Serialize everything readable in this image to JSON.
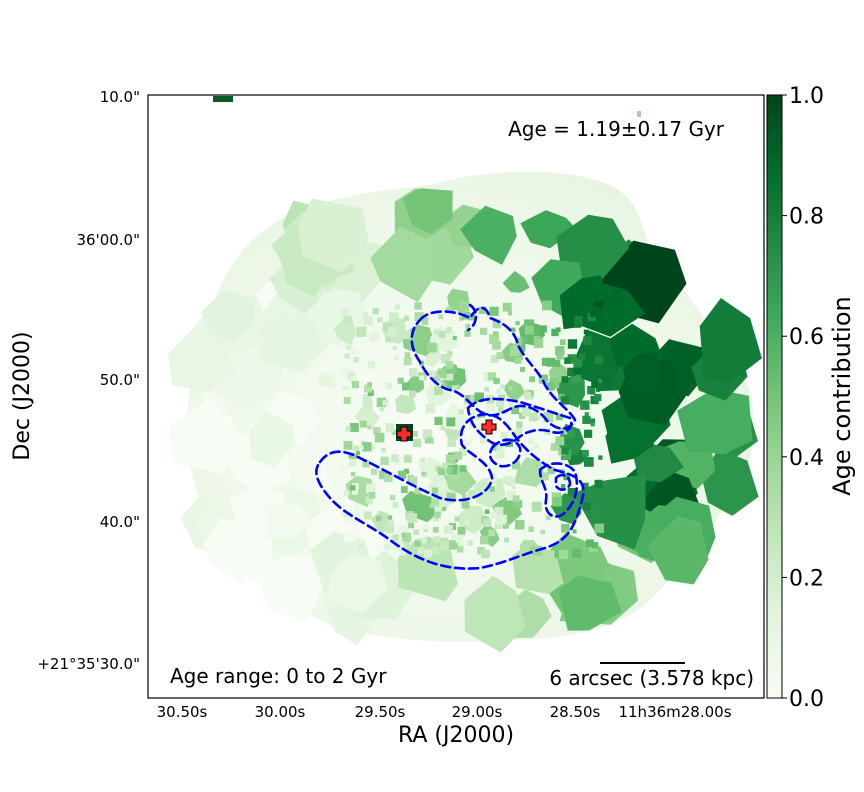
{
  "chart_data": {
    "type": "heatmap",
    "title": "",
    "xlabel": "RA (J2000)",
    "ylabel": "Dec (J2000)",
    "x_ticks": [
      "30.50s",
      "30.00s",
      "29.50s",
      "29.00s",
      "28.50s",
      "11h36m28.00s"
    ],
    "y_ticks": [
      "10.0\"",
      "36'00.0\"",
      "50.0\"",
      "40.0\"",
      "+21°35'30.0\""
    ],
    "age_annotation": "Age = 1.19±0.17 Gyr",
    "age_range_label": "Age range: 0 to 2 Gyr",
    "scale_bar_label": "6 arcsec (3.578 kpc)",
    "colorbar": {
      "label": "Age contribution",
      "range": [
        0.0,
        1.0
      ],
      "ticks": [
        "0.0",
        "0.2",
        "0.4",
        "0.6",
        "0.8",
        "1.0"
      ],
      "colormap": "Greens"
    },
    "markers": [
      {
        "name": "nucleus-west",
        "symbol": "plus",
        "color": "#ff2020"
      },
      {
        "name": "nucleus-east",
        "symbol": "plus",
        "color": "#ff2020"
      }
    ],
    "contour_color": "#0000ff",
    "contour_style": "dashed"
  }
}
